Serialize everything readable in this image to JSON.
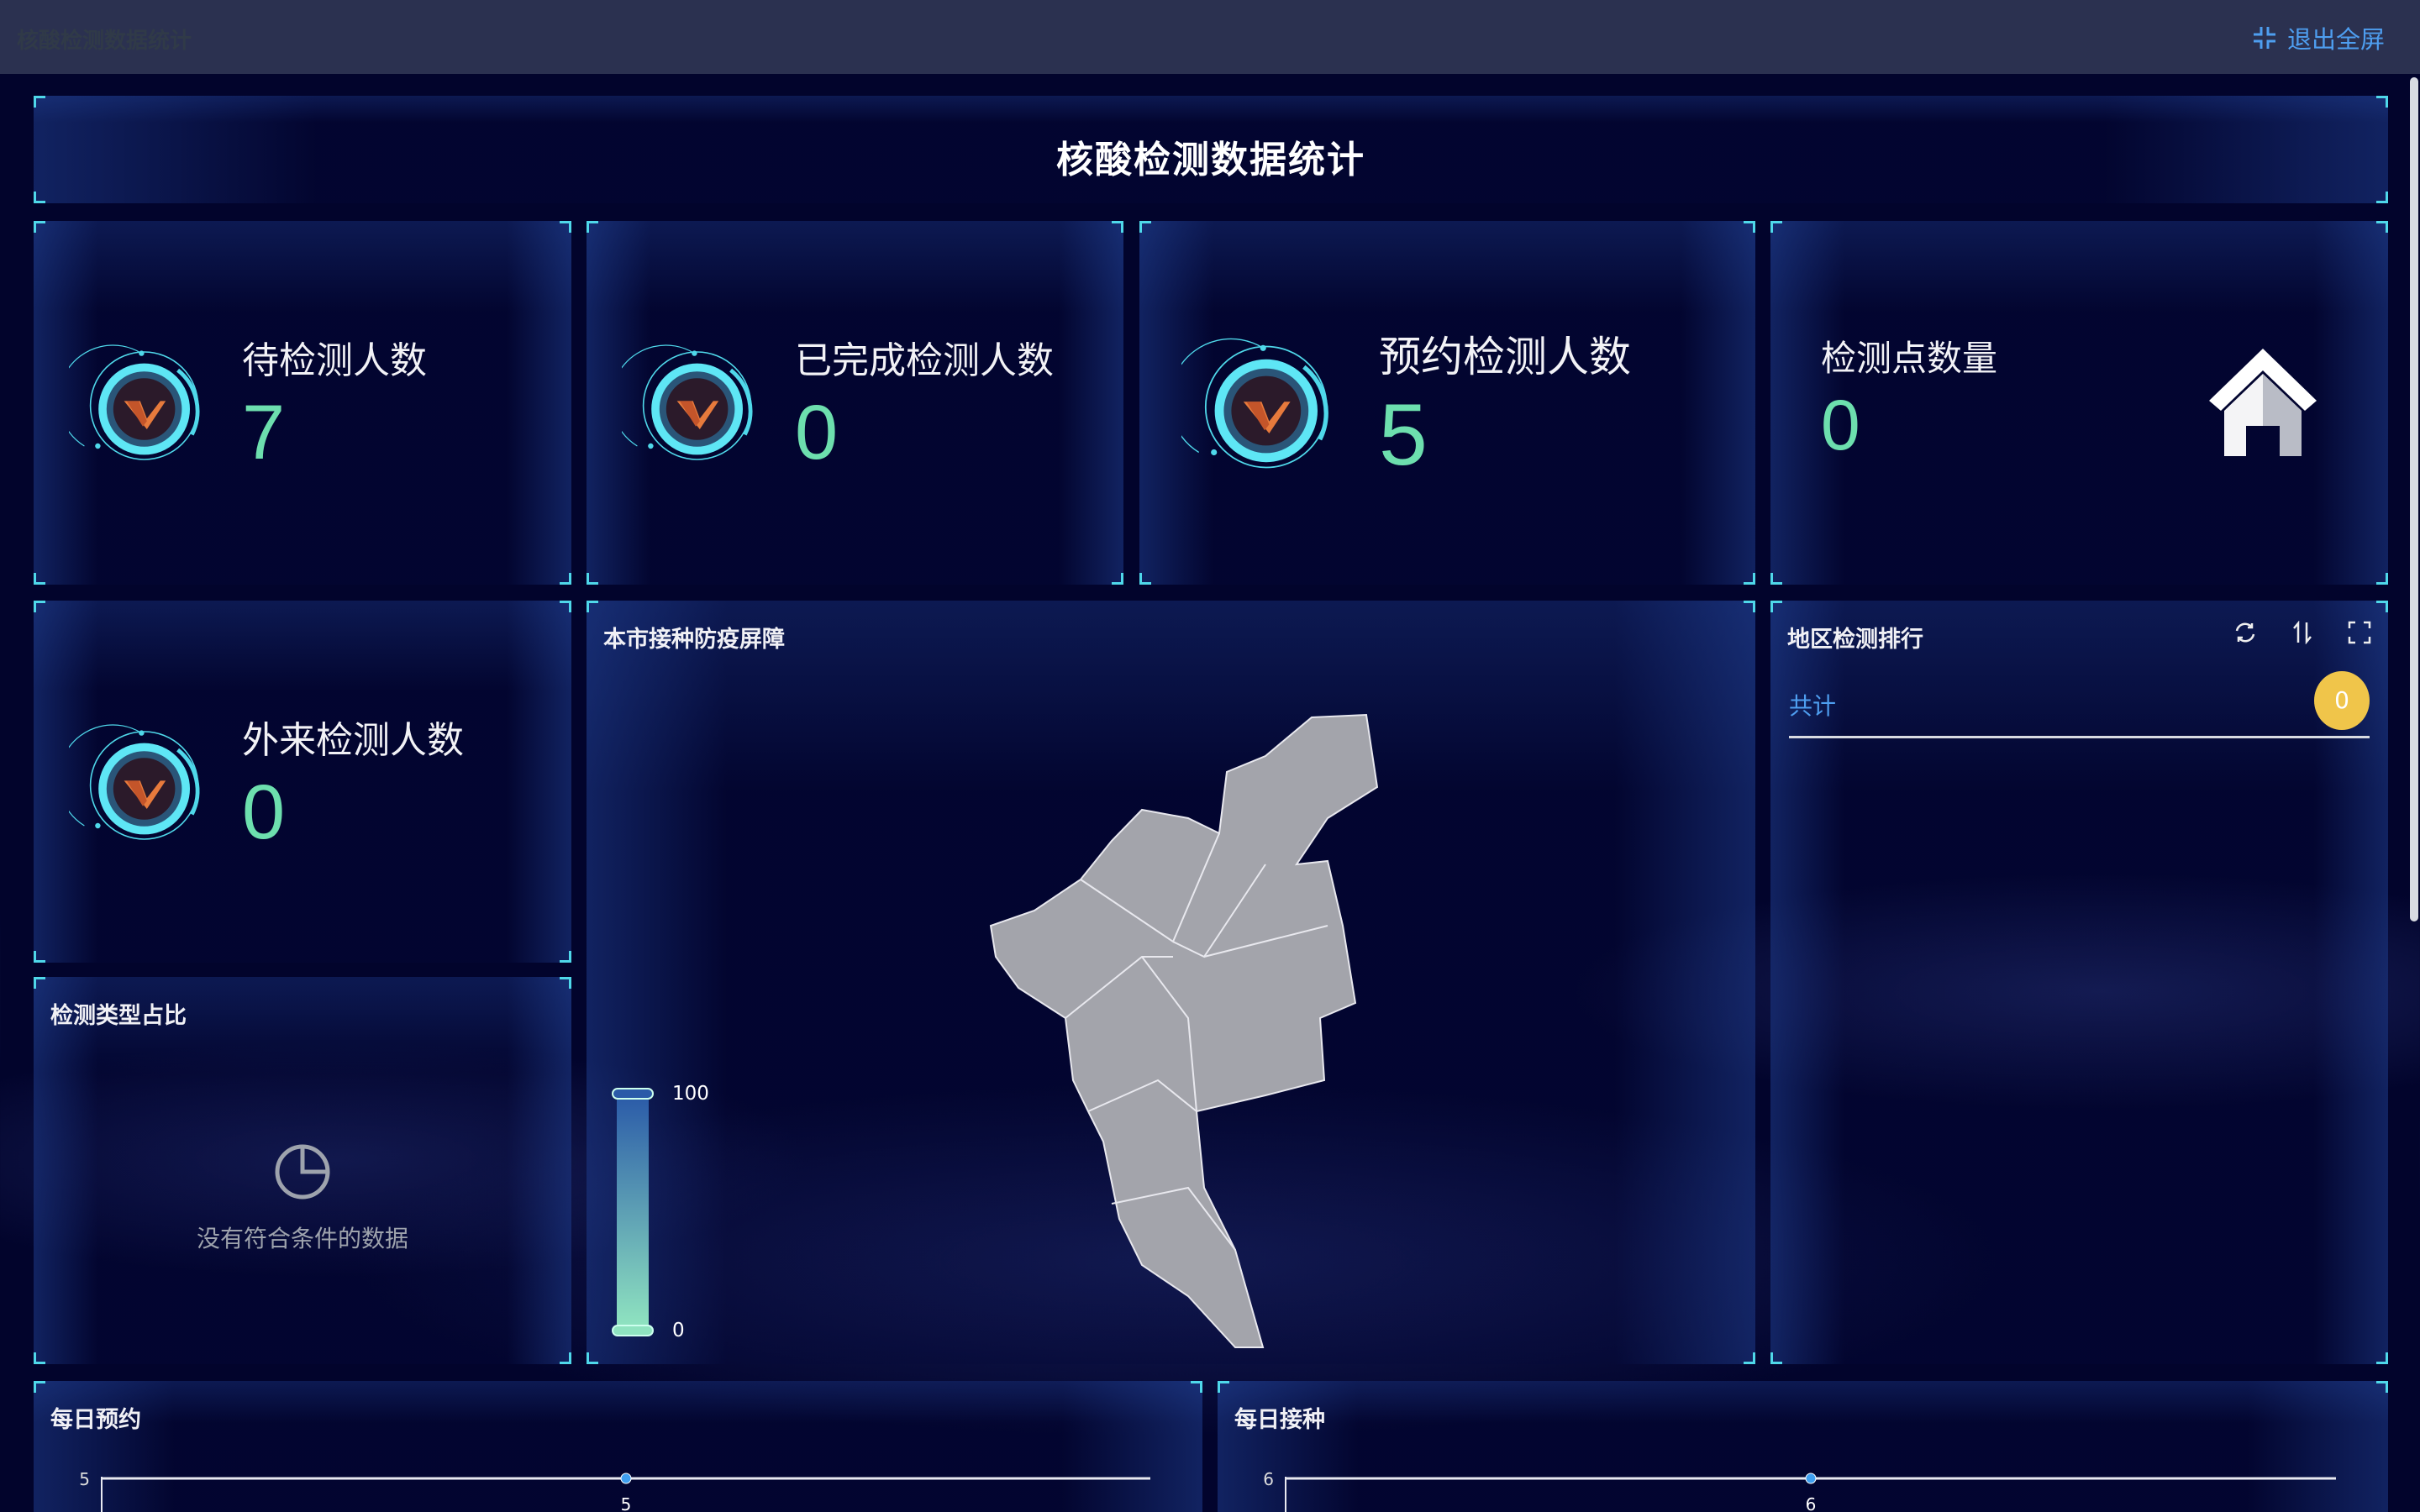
{
  "topbar": {
    "app_title": "核酸检测数据统计",
    "exit_fullscreen_label": "退出全屏",
    "exit_icon": "exit-fullscreen-icon"
  },
  "header": {
    "title": "核酸检测数据统计"
  },
  "stats": [
    {
      "label": "待检测人数",
      "value": "7",
      "icon": "v-logo-ring-icon"
    },
    {
      "label": "已完成检测人数",
      "value": "0",
      "icon": "v-logo-ring-icon"
    },
    {
      "label": "预约检测人数",
      "value": "5",
      "icon": "v-logo-ring-icon"
    },
    {
      "label": "检测点数量",
      "value": "0",
      "icon": "house-icon"
    },
    {
      "label": "外来检测人数",
      "value": "0",
      "icon": "v-logo-ring-icon"
    }
  ],
  "type_ratio": {
    "title": "检测类型占比",
    "empty_text": "没有符合条件的数据",
    "icon": "pie-chart-icon"
  },
  "map": {
    "title": "本市接种防疫屏障",
    "visual_map": {
      "max": "100",
      "min": "0",
      "colors": [
        "#2a5aa8",
        "#8fe3c0"
      ]
    },
    "region_color": "#a3a4ab"
  },
  "ranking": {
    "title": "地区检测排行",
    "total_label": "共计",
    "total_value": "0",
    "badge_color": "#f0c54a",
    "icons": [
      "refresh-icon",
      "sort-icon",
      "fullscreen-icon"
    ]
  },
  "chart_data": [
    {
      "type": "line",
      "title": "每日预约",
      "series": [
        {
          "values": [
            5
          ]
        }
      ],
      "data_labels": [
        "5"
      ],
      "yticks": [
        "5"
      ],
      "ylim": [
        0,
        5
      ],
      "grid": true,
      "line_color": "#e8e9f0",
      "point_color": "#3fa0f0"
    },
    {
      "type": "line",
      "title": "每日接种",
      "series": [
        {
          "values": [
            6
          ]
        }
      ],
      "data_labels": [
        "6"
      ],
      "yticks": [
        "6"
      ],
      "ylim": [
        0,
        6
      ],
      "grid": true,
      "line_color": "#e8e9f0",
      "point_color": "#3fa0f0"
    }
  ],
  "colors": {
    "accent": "#4fd8ea",
    "value_green": "#6ddfae",
    "link_blue": "#4e9ef0"
  }
}
